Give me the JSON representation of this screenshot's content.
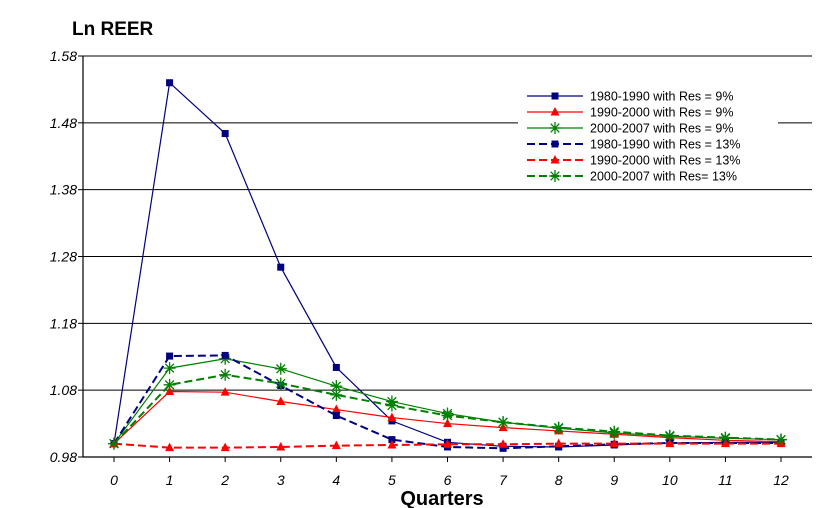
{
  "chart_data": {
    "type": "line",
    "title": "Ln REER",
    "xlabel": "Quarters",
    "ylabel": "",
    "x": [
      0,
      1,
      2,
      3,
      4,
      5,
      6,
      7,
      8,
      9,
      10,
      11,
      12
    ],
    "x_tick_labels": [
      "0",
      "1",
      "2",
      "3",
      "4",
      "5",
      "6",
      "7",
      "8",
      "9",
      "10",
      "11",
      "12"
    ],
    "y_ticks": [
      0.98,
      1.08,
      1.18,
      1.28,
      1.38,
      1.48,
      1.58
    ],
    "y_tick_labels": [
      "0.98",
      "1.08",
      "1.18",
      "1.28",
      "1.38",
      "1.48",
      "1.58"
    ],
    "ylim": [
      0.98,
      1.58
    ],
    "grid": "horizontal",
    "legend_position": "top-right",
    "series": [
      {
        "name": "1980-1990 with Res = 9%",
        "color": "#000080",
        "dash": "solid",
        "marker": "square",
        "values": [
          1.0,
          1.54,
          1.464,
          1.264,
          1.114,
          1.034,
          1.002,
          0.996,
          0.995,
          0.998,
          1.001,
          1.002,
          1.002
        ]
      },
      {
        "name": "1990-2000 with Res = 9%",
        "color": "#ff0000",
        "dash": "solid",
        "marker": "triangle",
        "values": [
          1.0,
          1.078,
          1.077,
          1.063,
          1.051,
          1.039,
          1.03,
          1.024,
          1.019,
          1.014,
          1.009,
          1.005,
          1.003
        ]
      },
      {
        "name": "2000-2007 with Res = 9%",
        "color": "#008000",
        "dash": "solid",
        "marker": "asterisk",
        "values": [
          1.0,
          1.113,
          1.127,
          1.112,
          1.086,
          1.063,
          1.045,
          1.032,
          1.023,
          1.016,
          1.011,
          1.008,
          1.006
        ]
      },
      {
        "name": "1980-1990 with Res = 13%",
        "color": "#000080",
        "dash": "dashed",
        "marker": "square",
        "values": [
          1.0,
          1.131,
          1.132,
          1.087,
          1.042,
          1.006,
          0.995,
          0.993,
          0.996,
          0.999,
          1.001,
          1.001,
          1.001
        ]
      },
      {
        "name": "1990-2000 with Res = 13%",
        "color": "#ff0000",
        "dash": "dashed",
        "marker": "triangle",
        "values": [
          1.0,
          0.994,
          0.994,
          0.995,
          0.997,
          0.998,
          0.999,
          0.999,
          1.0,
          1.0,
          1.0,
          1.0,
          1.0
        ]
      },
      {
        "name": "2000-2007 with Res= 13%",
        "color": "#008000",
        "dash": "dashed",
        "marker": "asterisk",
        "values": [
          1.0,
          1.088,
          1.103,
          1.09,
          1.073,
          1.057,
          1.042,
          1.032,
          1.024,
          1.018,
          1.012,
          1.009,
          1.006
        ]
      }
    ]
  }
}
